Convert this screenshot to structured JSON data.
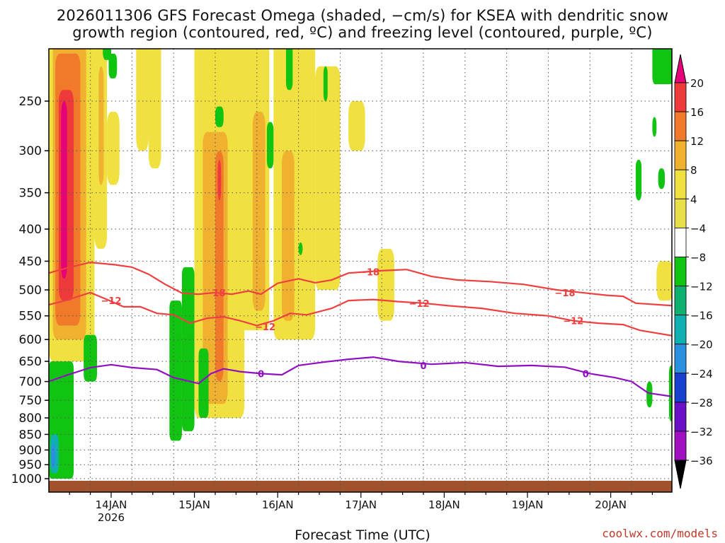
{
  "title_line1": "2026011306 GFS Forecast Omega (shaded, −cm/s) for KSEA with dendritic snow",
  "title_line2": "growth region (contoured, red, ºC) and freezing level (contoured, purple, ºC)",
  "credit": "coolwx.com/models",
  "chart_data": {
    "type": "heatmap",
    "xlabel": "Forecast Time (UTC)",
    "x_ticks": [
      {
        "label": "14JAN",
        "sub": "2026",
        "t": 0.75
      },
      {
        "label": "15JAN",
        "sub": "",
        "t": 1.75
      },
      {
        "label": "16JAN",
        "sub": "",
        "t": 2.75
      },
      {
        "label": "17JAN",
        "sub": "",
        "t": 3.75
      },
      {
        "label": "18JAN",
        "sub": "",
        "t": 4.75
      },
      {
        "label": "19JAN",
        "sub": "",
        "t": 5.75
      },
      {
        "label": "20JAN",
        "sub": "",
        "t": 6.75
      }
    ],
    "y_ticks": [
      250,
      300,
      350,
      400,
      450,
      500,
      550,
      600,
      650,
      700,
      750,
      800,
      850,
      900,
      950,
      1000
    ],
    "y_scale": "log-pressure",
    "colorbar": {
      "labels": [
        "20",
        "16",
        "12",
        "8",
        "4",
        "−4",
        "−8",
        "−12",
        "−16",
        "−20",
        "−24",
        "−28",
        "−32",
        "−36"
      ],
      "colors": [
        "#e6007a",
        "#ee3a3a",
        "#f07a2a",
        "#f0b030",
        "#f0e040",
        "#e8e04a",
        "#ffffff",
        "#11c411",
        "#10b070",
        "#10b0b0",
        "#2a90e0",
        "#1a40d0",
        "#6a10c8",
        "#a010c0",
        "#999999",
        "#000000"
      ]
    },
    "contours": [
      {
        "label": "−18",
        "color": "#ee4040",
        "label_positions": [
          [
            2.0,
            505
          ],
          [
            3.85,
            468
          ],
          [
            6.2,
            505
          ]
        ],
        "points": [
          [
            0.0,
            470
          ],
          [
            0.2,
            462
          ],
          [
            0.5,
            452
          ],
          [
            0.8,
            456
          ],
          [
            1.0,
            460
          ],
          [
            1.2,
            472
          ],
          [
            1.4,
            490
          ],
          [
            1.6,
            506
          ],
          [
            1.8,
            508
          ],
          [
            2.0,
            505
          ],
          [
            2.2,
            508
          ],
          [
            2.4,
            502
          ],
          [
            2.55,
            508
          ],
          [
            2.75,
            488
          ],
          [
            3.0,
            480
          ],
          [
            3.2,
            487
          ],
          [
            3.4,
            482
          ],
          [
            3.6,
            470
          ],
          [
            3.8,
            468
          ],
          [
            4.0,
            466
          ],
          [
            4.3,
            464
          ],
          [
            4.6,
            476
          ],
          [
            4.9,
            482
          ],
          [
            5.3,
            485
          ],
          [
            5.7,
            490
          ],
          [
            6.1,
            500
          ],
          [
            6.4,
            505
          ],
          [
            6.7,
            510
          ],
          [
            6.9,
            512
          ],
          [
            7.05,
            525
          ],
          [
            7.5,
            530
          ]
        ]
      },
      {
        "label": "−12",
        "color": "#ee4040",
        "label_positions": [
          [
            0.75,
            520
          ],
          [
            2.6,
            572
          ],
          [
            4.45,
            525
          ],
          [
            6.3,
            560
          ]
        ],
        "points": [
          [
            0.0,
            528
          ],
          [
            0.2,
            520
          ],
          [
            0.5,
            505
          ],
          [
            0.7,
            518
          ],
          [
            0.9,
            532
          ],
          [
            1.1,
            532
          ],
          [
            1.3,
            545
          ],
          [
            1.5,
            548
          ],
          [
            1.7,
            565
          ],
          [
            1.9,
            555
          ],
          [
            2.1,
            552
          ],
          [
            2.3,
            560
          ],
          [
            2.5,
            570
          ],
          [
            2.7,
            560
          ],
          [
            2.9,
            545
          ],
          [
            3.1,
            548
          ],
          [
            3.4,
            535
          ],
          [
            3.6,
            520
          ],
          [
            3.9,
            518
          ],
          [
            4.2,
            522
          ],
          [
            4.5,
            525
          ],
          [
            4.8,
            530
          ],
          [
            5.2,
            535
          ],
          [
            5.6,
            545
          ],
          [
            6.0,
            550
          ],
          [
            6.3,
            560
          ],
          [
            6.6,
            565
          ],
          [
            6.9,
            568
          ],
          [
            7.1,
            580
          ],
          [
            7.5,
            592
          ]
        ]
      },
      {
        "label": "0",
        "color": "#9010c0",
        "label_positions": [
          [
            2.55,
            680
          ],
          [
            4.5,
            660
          ],
          [
            6.45,
            680
          ]
        ],
        "points": [
          [
            0.0,
            700
          ],
          [
            0.2,
            685
          ],
          [
            0.5,
            665
          ],
          [
            0.75,
            658
          ],
          [
            1.0,
            665
          ],
          [
            1.3,
            670
          ],
          [
            1.5,
            690
          ],
          [
            1.7,
            700
          ],
          [
            1.8,
            705
          ],
          [
            1.95,
            680
          ],
          [
            2.1,
            668
          ],
          [
            2.3,
            675
          ],
          [
            2.55,
            680
          ],
          [
            2.8,
            683
          ],
          [
            3.0,
            660
          ],
          [
            3.3,
            652
          ],
          [
            3.6,
            645
          ],
          [
            3.9,
            640
          ],
          [
            4.2,
            650
          ],
          [
            4.6,
            657
          ],
          [
            5.0,
            653
          ],
          [
            5.4,
            662
          ],
          [
            5.8,
            660
          ],
          [
            6.2,
            664
          ],
          [
            6.5,
            680
          ],
          [
            6.8,
            690
          ],
          [
            7.0,
            700
          ],
          [
            7.2,
            730
          ],
          [
            7.5,
            740
          ]
        ]
      }
    ]
  }
}
